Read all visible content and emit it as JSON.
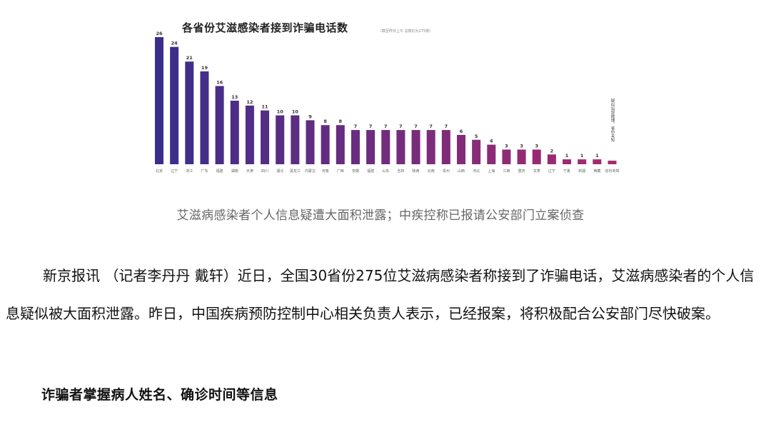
{
  "chart": {
    "title": "各省份艾滋感染者接到诈骗电话数",
    "subtitle": "（截至昨日上午 总数约为275例）",
    "legend": "疑似出现微博，省份未知"
  },
  "chart_data": {
    "type": "bar",
    "title": "各省份艾滋感染者接到诈骗电话数",
    "categories": [
      "北京",
      "辽宁",
      "浙江",
      "广东",
      "福建",
      "湖南",
      "天津",
      "四川",
      "湖北",
      "黑龙江",
      "内蒙古",
      "河南",
      "广西",
      "安徽",
      "福建",
      "山东",
      "吉林",
      "陕西",
      "云南",
      "贵州",
      "山西",
      "河北",
      "上海",
      "江西",
      "重庆",
      "甘肃",
      "辽宁",
      "宁夏",
      "新疆",
      "西藏",
      "省份未知"
    ],
    "values": [
      26,
      24,
      21,
      19,
      16,
      13,
      12,
      11,
      10,
      10,
      9,
      8,
      8,
      7,
      7,
      7,
      7,
      7,
      7,
      7,
      6,
      5,
      4,
      3,
      3,
      3,
      2,
      1,
      1,
      1,
      null
    ],
    "ylim": [
      0,
      26
    ],
    "grid": false
  },
  "caption": "艾滋病感染者个人信息疑遭大面积泄露；中疾控称已报请公安部门立案侦查",
  "article": {
    "paragraph": "新京报讯 （记者李丹丹 戴轩）近日，全国30省份275位艾滋病感染者称接到了诈骗电话，艾滋病感染者的个人信息疑似被大面积泄露。昨日，中国疾病预防控制中心相关负责人表示，已经报案，将积极配合公安部门尽快破案。",
    "subheading": "诈骗者掌握病人姓名、确诊时间等信息"
  }
}
